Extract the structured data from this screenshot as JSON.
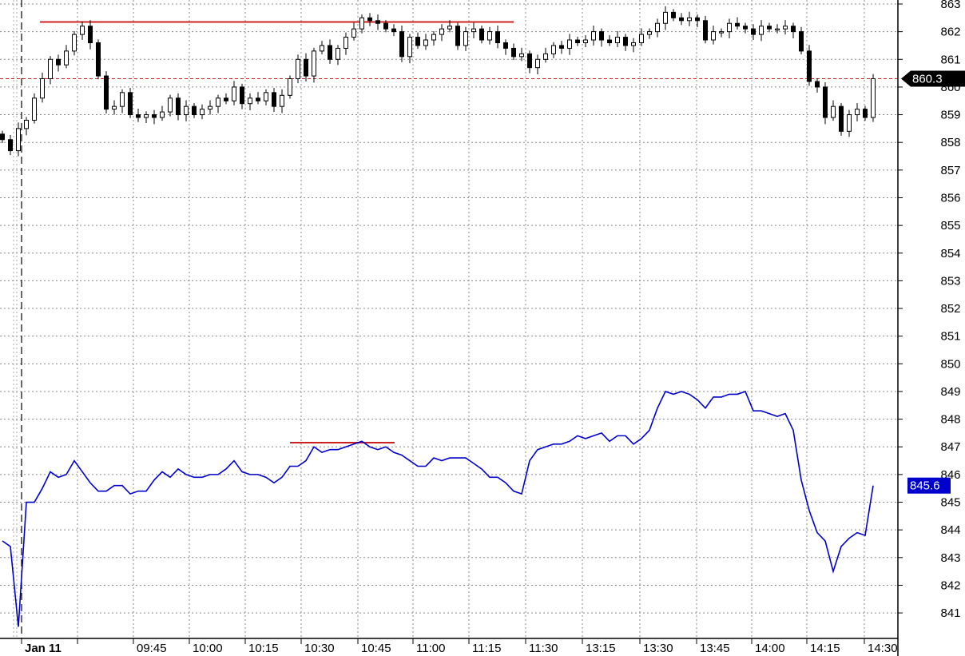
{
  "chart_data": {
    "type": "candlestick",
    "title": "",
    "ylim": [
      840.4,
      863.1
    ],
    "y_ticks": [
      841,
      842,
      843,
      844,
      845,
      846,
      847,
      848,
      849,
      850,
      851,
      852,
      853,
      854,
      855,
      856,
      857,
      858,
      859,
      860,
      861,
      862,
      863
    ],
    "grid": true,
    "x_ticks": [
      {
        "label": "Jan 11",
        "bar": 2.4,
        "bold": true
      },
      {
        "label": "",
        "bar": 9.4
      },
      {
        "label": "09:45",
        "bar": 16.4
      },
      {
        "label": "10:00",
        "bar": 23.4
      },
      {
        "label": "10:15",
        "bar": 30.4
      },
      {
        "label": "10:30",
        "bar": 37.4
      },
      {
        "label": "10:45",
        "bar": 44.5
      },
      {
        "label": "11:00",
        "bar": 51.4
      },
      {
        "label": "11:15",
        "bar": 58.4
      },
      {
        "label": "11:30",
        "bar": 65.5
      },
      {
        "label": "13:15",
        "bar": 72.6
      },
      {
        "label": "13:30",
        "bar": 79.8
      },
      {
        "label": "13:45",
        "bar": 86.9
      },
      {
        "label": "14:00",
        "bar": 93.8
      },
      {
        "label": "14:15",
        "bar": 100.7
      },
      {
        "label": "14:30",
        "bar": 107.9
      }
    ],
    "day_separator_bar": 2.4,
    "candles": {
      "first_open": 858.3,
      "close": [
        858.1,
        857.7,
        858.5,
        858.8,
        859.6,
        860.3,
        861.0,
        860.8,
        861.3,
        861.9,
        862.2,
        861.6,
        860.4,
        859.2,
        859.3,
        859.8,
        859.0,
        858.9,
        859.0,
        858.9,
        859.1,
        859.6,
        859.0,
        859.3,
        859.0,
        859.2,
        859.3,
        859.6,
        859.5,
        860.0,
        859.4,
        859.6,
        859.5,
        859.8,
        859.3,
        859.7,
        860.3,
        861.0,
        860.4,
        861.3,
        861.5,
        861.0,
        861.4,
        861.8,
        862.1,
        862.5,
        862.4,
        862.3,
        862.1,
        862.0,
        861.1,
        861.8,
        861.5,
        861.7,
        861.9,
        862.1,
        862.2,
        861.5,
        862.0,
        862.1,
        861.7,
        862.0,
        861.6,
        861.4,
        861.1,
        861.2,
        860.7,
        861.0,
        861.2,
        861.5,
        861.4,
        861.7,
        861.6,
        861.7,
        862.0,
        861.7,
        861.6,
        861.8,
        861.5,
        861.6,
        861.9,
        862.0,
        862.3,
        862.7,
        862.5,
        862.4,
        862.5,
        862.4,
        861.7,
        862.0,
        862.0,
        862.3,
        862.2,
        862.1,
        861.9,
        862.2,
        862.1,
        862.1,
        862.2,
        862.0,
        861.3,
        860.2,
        860.0,
        858.9,
        859.3,
        858.4,
        859.0,
        859.2,
        858.9,
        860.3
      ],
      "last_value_label": "860.3",
      "up_color": "#ffffff",
      "down_color": "#000000"
    },
    "line_series": {
      "color": "#0000cc",
      "values": [
        843.6,
        843.4,
        840.5,
        845.0,
        845.0,
        845.5,
        846.1,
        845.9,
        846.0,
        846.5,
        846.1,
        845.7,
        845.4,
        845.4,
        845.6,
        845.6,
        845.3,
        845.4,
        845.4,
        845.8,
        846.1,
        845.9,
        846.2,
        846.0,
        845.9,
        845.9,
        846.0,
        846.0,
        846.2,
        846.5,
        846.1,
        846.0,
        846.0,
        845.9,
        845.7,
        845.9,
        846.3,
        846.3,
        846.5,
        847.0,
        846.8,
        846.9,
        846.9,
        847.0,
        847.1,
        847.2,
        847.0,
        846.9,
        847.0,
        846.8,
        846.7,
        846.5,
        846.3,
        846.3,
        846.6,
        846.5,
        846.6,
        846.6,
        846.6,
        846.4,
        846.2,
        845.9,
        845.9,
        845.7,
        845.4,
        845.3,
        846.5,
        846.9,
        847.0,
        847.1,
        847.1,
        847.2,
        847.4,
        847.3,
        847.4,
        847.5,
        847.2,
        847.4,
        847.4,
        847.1,
        847.3,
        847.6,
        848.4,
        849.0,
        848.9,
        849.0,
        848.9,
        848.7,
        848.4,
        848.8,
        848.8,
        848.9,
        848.9,
        849.0,
        848.3,
        848.3,
        848.2,
        848.1,
        848.2,
        847.6,
        845.8,
        844.7,
        843.9,
        843.6,
        842.5,
        843.4,
        843.7,
        843.9,
        843.8,
        845.6
      ],
      "last_value_label": "845.6"
    },
    "annotations": {
      "color": "#cc2222",
      "lines": [
        {
          "kind": "solid",
          "value": 862.35,
          "from_bar": 4.7,
          "to_bar": 64.0
        },
        {
          "kind": "dashed",
          "value": 860.3,
          "from_bar": -0.3,
          "to_bar": 112.1
        },
        {
          "kind": "solid",
          "value": 847.15,
          "from_bar": 36.0,
          "to_bar": 49.1
        }
      ]
    }
  }
}
